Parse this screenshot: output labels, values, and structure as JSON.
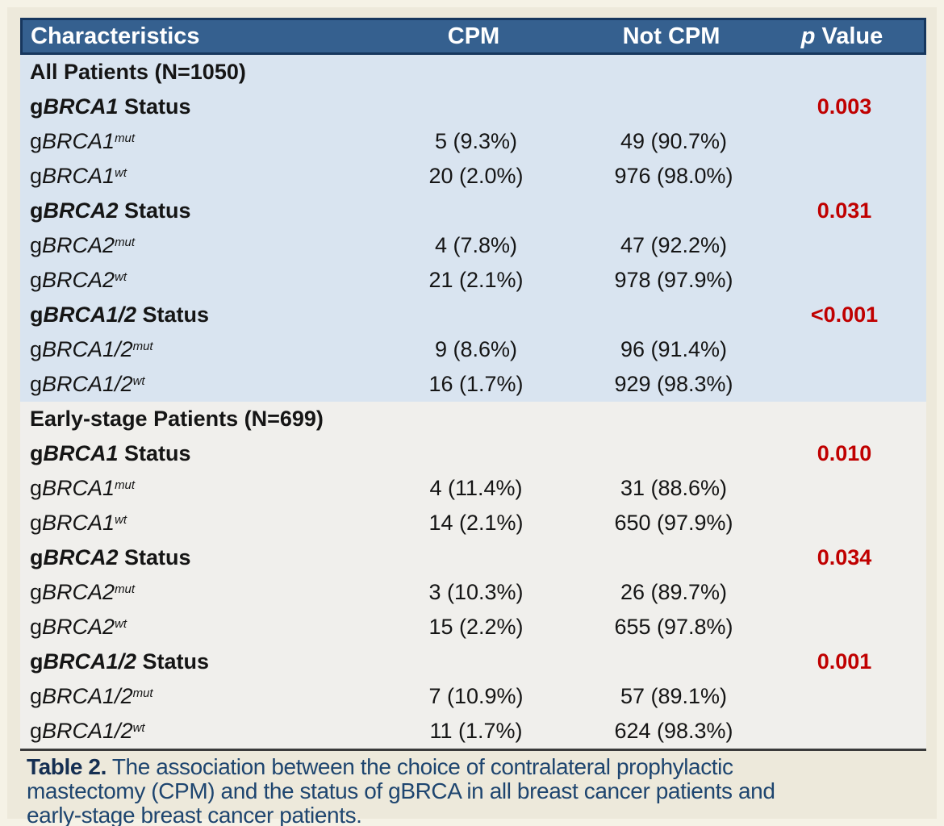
{
  "table": {
    "header": {
      "characteristics": "Characteristics",
      "cpm": "CPM",
      "not_cpm": "Not CPM",
      "p_italic": "p",
      "p_rest": " Value"
    },
    "sections": [
      {
        "title": "All Patients (N=1050)",
        "rows": [
          {
            "kind": "status",
            "prefix": "g",
            "gene": "BRCA1",
            "suffix": " Status",
            "p": "0.003"
          },
          {
            "kind": "data",
            "prefix": "g",
            "gene": "BRCA1",
            "sup": "mut",
            "cpm": "5 (9.3%)",
            "not_cpm": "49 (90.7%)"
          },
          {
            "kind": "data",
            "prefix": "g",
            "gene": "BRCA1",
            "sup": "wt",
            "cpm": "20 (2.0%)",
            "not_cpm": "976 (98.0%)"
          },
          {
            "kind": "status",
            "prefix": "g",
            "gene": "BRCA2",
            "suffix": " Status",
            "p": "0.031"
          },
          {
            "kind": "data",
            "prefix": "g",
            "gene": "BRCA2",
            "sup": "mut",
            "cpm": "4 (7.8%)",
            "not_cpm": "47 (92.2%)"
          },
          {
            "kind": "data",
            "prefix": "g",
            "gene": "BRCA2",
            "sup": "wt",
            "cpm": "21 (2.1%)",
            "not_cpm": "978 (97.9%)"
          },
          {
            "kind": "status",
            "prefix": "g",
            "gene": "BRCA1/2",
            "suffix": " Status",
            "p": "<0.001"
          },
          {
            "kind": "data",
            "prefix": "g",
            "gene": "BRCA1/2",
            "sup": "mut",
            "cpm": "9 (8.6%)",
            "not_cpm": "96 (91.4%)"
          },
          {
            "kind": "data",
            "prefix": "g",
            "gene": "BRCA1/2",
            "sup": "wt",
            "cpm": "16 (1.7%)",
            "not_cpm": "929 (98.3%)"
          }
        ]
      },
      {
        "title": "Early-stage Patients (N=699)",
        "rows": [
          {
            "kind": "status",
            "prefix": "g",
            "gene": "BRCA1",
            "suffix": " Status",
            "p": "0.010"
          },
          {
            "kind": "data",
            "prefix": "g",
            "gene": "BRCA1",
            "sup": "mut",
            "cpm": "4 (11.4%)",
            "not_cpm": "31 (88.6%)"
          },
          {
            "kind": "data",
            "prefix": "g",
            "gene": "BRCA1",
            "sup": "wt",
            "cpm": "14 (2.1%)",
            "not_cpm": "650 (97.9%)"
          },
          {
            "kind": "status",
            "prefix": "g",
            "gene": "BRCA2",
            "suffix": " Status",
            "p": "0.034"
          },
          {
            "kind": "data",
            "prefix": "g",
            "gene": "BRCA2",
            "sup": "mut",
            "cpm": "3 (10.3%)",
            "not_cpm": "26 (89.7%)"
          },
          {
            "kind": "data",
            "prefix": "g",
            "gene": "BRCA2",
            "sup": "wt",
            "cpm": "15 (2.2%)",
            "not_cpm": "655 (97.8%)"
          },
          {
            "kind": "status",
            "prefix": "g",
            "gene": "BRCA1/2",
            "suffix": " Status",
            "p": "0.001"
          },
          {
            "kind": "data",
            "prefix": "g",
            "gene": "BRCA1/2",
            "sup": "mut",
            "cpm": "7 (10.9%)",
            "not_cpm": "57 (89.1%)"
          },
          {
            "kind": "data",
            "prefix": "g",
            "gene": "BRCA1/2",
            "sup": "wt",
            "cpm": "11 (1.7%)",
            "not_cpm": "624 (98.3%)"
          }
        ]
      }
    ]
  },
  "caption": {
    "label": "Table 2.",
    "line1": " The association between the choice of contralateral prophylactic",
    "line2": "mastectomy (CPM) and the status of gBRCA in all breast cancer patients and",
    "line3": "early-stage breast cancer patients."
  },
  "colors": {
    "header_bg": "#35608F",
    "header_border": "#17375E",
    "section_all_bg": "#D9E4F0",
    "section_early_bg": "#F0EFEC",
    "page_bg": "#EDE9DB",
    "p_value_red": "#C00000",
    "caption_navy": "#1E456F"
  },
  "chart_data": {
    "type": "table",
    "title": "Table 2. The association between the choice of contralateral prophylactic mastectomy (CPM) and the status of gBRCA in all breast cancer patients and early-stage breast cancer patients.",
    "columns": [
      "Characteristics",
      "CPM",
      "Not CPM",
      "p Value"
    ],
    "rows": [
      [
        "All Patients (N=1050)",
        "",
        "",
        ""
      ],
      [
        "gBRCA1 Status",
        "",
        "",
        "0.003"
      ],
      [
        "gBRCA1mut",
        "5 (9.3%)",
        "49 (90.7%)",
        ""
      ],
      [
        "gBRCA1wt",
        "20 (2.0%)",
        "976 (98.0%)",
        ""
      ],
      [
        "gBRCA2 Status",
        "",
        "",
        "0.031"
      ],
      [
        "gBRCA2mut",
        "4 (7.8%)",
        "47 (92.2%)",
        ""
      ],
      [
        "gBRCA2wt",
        "21 (2.1%)",
        "978 (97.9%)",
        ""
      ],
      [
        "gBRCA1/2 Status",
        "",
        "",
        "<0.001"
      ],
      [
        "gBRCA1/2mut",
        "9 (8.6%)",
        "96 (91.4%)",
        ""
      ],
      [
        "gBRCA1/2wt",
        "16 (1.7%)",
        "929 (98.3%)",
        ""
      ],
      [
        "Early-stage Patients (N=699)",
        "",
        "",
        ""
      ],
      [
        "gBRCA1 Status",
        "",
        "",
        "0.010"
      ],
      [
        "gBRCA1mut",
        "4 (11.4%)",
        "31 (88.6%)",
        ""
      ],
      [
        "gBRCA1wt",
        "14 (2.1%)",
        "650 (97.9%)",
        ""
      ],
      [
        "gBRCA2 Status",
        "",
        "",
        "0.034"
      ],
      [
        "gBRCA2mut",
        "3 (10.3%)",
        "26 (89.7%)",
        ""
      ],
      [
        "gBRCA2wt",
        "15 (2.2%)",
        "655 (97.8%)",
        ""
      ],
      [
        "gBRCA1/2 Status",
        "",
        "",
        "0.001"
      ],
      [
        "gBRCA1/2mut",
        "7 (10.9%)",
        "57 (89.1%)",
        ""
      ],
      [
        "gBRCA1/2wt",
        "11 (1.7%)",
        "624 (98.3%)",
        ""
      ]
    ]
  }
}
